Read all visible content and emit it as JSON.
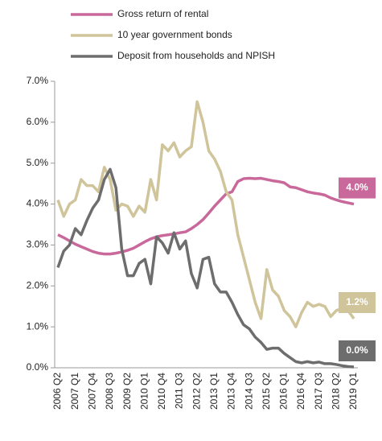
{
  "chart_data": {
    "type": "line",
    "categories": [
      "2006 Q2",
      null,
      null,
      "2007 Q1",
      null,
      null,
      "2007 Q4",
      null,
      null,
      "2008 Q3",
      null,
      null,
      "2009 Q2",
      null,
      null,
      "2010 Q1",
      null,
      null,
      "2010 Q4",
      null,
      null,
      "2011 Q3",
      null,
      null,
      "2012 Q2",
      null,
      null,
      "2013 Q1",
      null,
      null,
      "2013 Q4",
      null,
      null,
      "2014 Q3",
      null,
      null,
      "2015 Q2",
      null,
      null,
      "2016 Q1",
      null,
      null,
      "2016 Q4",
      null,
      null,
      "2017 Q3",
      null,
      null,
      "2018 Q2",
      null,
      null,
      "2019 Q1"
    ],
    "series": [
      {
        "name": "Gross return of rental",
        "color": "#c9689a",
        "end_label": "4.0%",
        "values": [
          3.25,
          3.18,
          3.1,
          3.02,
          2.96,
          2.9,
          2.84,
          2.8,
          2.78,
          2.78,
          2.8,
          2.83,
          2.87,
          2.92,
          3.0,
          3.08,
          3.15,
          3.2,
          3.23,
          3.25,
          3.27,
          3.3,
          3.32,
          3.4,
          3.5,
          3.62,
          3.78,
          3.95,
          4.1,
          4.25,
          4.3,
          4.55,
          4.62,
          4.63,
          4.62,
          4.63,
          4.6,
          4.57,
          4.55,
          4.52,
          4.42,
          4.4,
          4.35,
          4.3,
          4.27,
          4.25,
          4.22,
          4.15,
          4.1,
          4.06,
          4.03,
          4.0
        ]
      },
      {
        "name": "10 year government bonds",
        "color": "#cfc49a",
        "end_label": "1.2%",
        "values": [
          4.1,
          3.7,
          4.0,
          4.1,
          4.6,
          4.45,
          4.45,
          4.3,
          4.9,
          4.6,
          3.85,
          4.0,
          3.95,
          3.7,
          3.95,
          3.8,
          4.6,
          4.1,
          5.45,
          5.3,
          5.5,
          5.15,
          5.3,
          5.4,
          6.5,
          6.0,
          5.3,
          5.1,
          4.8,
          4.3,
          4.1,
          3.25,
          2.7,
          2.15,
          1.6,
          1.2,
          2.4,
          1.9,
          1.75,
          1.4,
          1.25,
          1.0,
          1.35,
          1.6,
          1.5,
          1.55,
          1.5,
          1.25,
          1.4,
          1.45,
          1.4,
          1.2
        ]
      },
      {
        "name": "Deposit from households and NPISH",
        "color": "#6d6d6d",
        "end_label": "0.0%",
        "values": [
          2.45,
          2.85,
          3.0,
          3.4,
          3.25,
          3.6,
          3.9,
          4.1,
          4.6,
          4.85,
          4.4,
          2.9,
          2.25,
          2.25,
          2.55,
          2.65,
          2.05,
          3.2,
          3.05,
          2.8,
          3.3,
          2.9,
          3.1,
          2.3,
          1.95,
          2.65,
          2.7,
          2.05,
          1.85,
          1.85,
          1.6,
          1.3,
          1.05,
          0.95,
          0.75,
          0.62,
          0.45,
          0.48,
          0.48,
          0.35,
          0.25,
          0.15,
          0.12,
          0.15,
          0.12,
          0.14,
          0.1,
          0.1,
          0.08,
          0.05,
          0.03,
          0.02
        ]
      }
    ],
    "ylim": [
      0,
      7
    ],
    "yticks": [
      {
        "value": 0,
        "label": "0.0%"
      },
      {
        "value": 1,
        "label": "1.0%"
      },
      {
        "value": 2,
        "label": "2.0%"
      },
      {
        "value": 3,
        "label": "3.0%"
      },
      {
        "value": 4,
        "label": "4.0%"
      },
      {
        "value": 5,
        "label": "5.0%"
      },
      {
        "value": 6,
        "label": "6.0%"
      },
      {
        "value": 7,
        "label": "7.0%"
      }
    ],
    "grid": false
  }
}
